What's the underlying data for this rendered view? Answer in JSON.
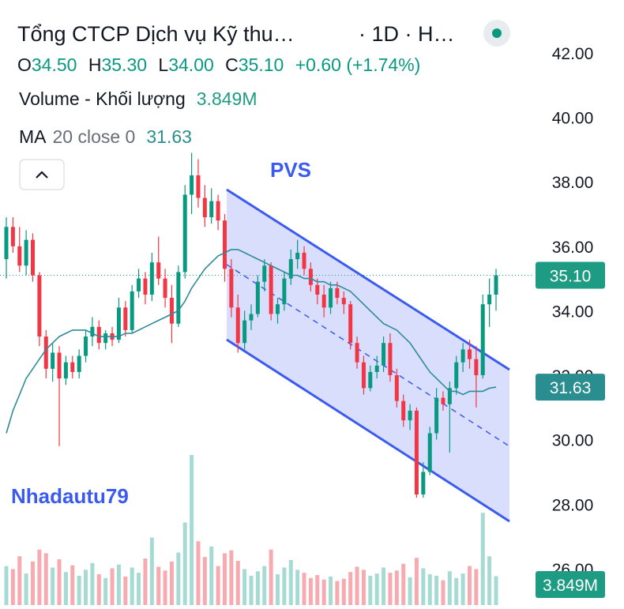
{
  "chart_data": {
    "type": "candlestick",
    "title": "Tổng CTCP Dịch vụ Kỹ thu…",
    "interval": "· 1D · H…",
    "ohlc_legend": [
      {
        "label": "O",
        "value": "34.50"
      },
      {
        "label": "H",
        "value": "35.30"
      },
      {
        "label": "L",
        "value": "34.00"
      },
      {
        "label": "C",
        "value": "35.10"
      }
    ],
    "change": "+0.60 (+1.74%)",
    "volume_legend": {
      "name": "Volume - Khối lượng",
      "value": "3.849M"
    },
    "ma_legend": {
      "name": "MA",
      "params": "20 close 0",
      "value": "31.63"
    },
    "annotations": [
      "PVS",
      "Nhadautu79"
    ],
    "up_color": "#089981",
    "down_color": "#f23645",
    "volume_up_color": "#a6dbd3",
    "volume_down_color": "#f7abb1",
    "ylim": [
      24.87,
      43.64
    ],
    "yticks": [
      {
        "value": 26,
        "label": "26.00"
      },
      {
        "value": 28,
        "label": "28.00"
      },
      {
        "value": 30,
        "label": "30.00"
      },
      {
        "value": 32,
        "label": "32.00"
      },
      {
        "value": 34,
        "label": "34.00"
      },
      {
        "value": 36,
        "label": "36.00"
      },
      {
        "value": 38,
        "label": "38.00"
      },
      {
        "value": 40,
        "label": "40.00"
      },
      {
        "value": 42,
        "label": "42.00"
      }
    ],
    "grid": false,
    "open": [
      35.6,
      36.6,
      36.0,
      35.4,
      36.2,
      35.1,
      33.2,
      32.2,
      32.7,
      31.9,
      32.4,
      32.1,
      32.6,
      33.2,
      33.5,
      33.0,
      33.3,
      33.1,
      34.1,
      33.4,
      34.6,
      35.0,
      34.5,
      35.5,
      35.0,
      34.4,
      33.6,
      35.2,
      37.6,
      38.2,
      37.5,
      36.9,
      37.4,
      36.8,
      35.3,
      34.1,
      33.0,
      33.7,
      33.9,
      34.9,
      35.4,
      33.9,
      34.2,
      35.0,
      35.6,
      35.8,
      35.3,
      34.8,
      34.5,
      34.1,
      34.7,
      34.4,
      34.2,
      33.0,
      32.4,
      31.6,
      32.1,
      32.3,
      33.0,
      32.0,
      31.2,
      30.6,
      30.9,
      28.3,
      29.0,
      30.2,
      31.3,
      31.1,
      31.6,
      32.4,
      32.8,
      32.5,
      32.0,
      34.2,
      34.5
    ],
    "high": [
      36.9,
      36.9,
      36.6,
      36.5,
      36.4,
      35.2,
      33.4,
      33.0,
      32.9,
      32.6,
      32.6,
      32.8,
      33.4,
      33.8,
      33.7,
      33.4,
      33.5,
      34.4,
      34.3,
      34.8,
      35.3,
      35.2,
      35.8,
      36.3,
      35.3,
      34.8,
      35.4,
      37.9,
      38.9,
      38.7,
      37.9,
      37.8,
      37.6,
      37.0,
      35.6,
      34.5,
      34.0,
      34.2,
      35.1,
      35.6,
      35.5,
      34.4,
      35.2,
      35.9,
      36.2,
      36.0,
      35.5,
      35.0,
      34.8,
      34.9,
      34.9,
      34.6,
      34.3,
      33.2,
      32.6,
      32.3,
      32.6,
      33.2,
      33.3,
      32.2,
      31.4,
      31.1,
      31.0,
      29.3,
      30.4,
      31.6,
      31.5,
      31.8,
      32.6,
      33.0,
      33.1,
      32.9,
      34.5,
      35.0,
      35.3
    ],
    "low": [
      35.0,
      35.8,
      35.2,
      35.1,
      34.9,
      32.9,
      31.9,
      31.8,
      29.8,
      31.7,
      31.9,
      31.9,
      32.4,
      32.9,
      32.8,
      32.8,
      32.9,
      33.0,
      33.2,
      33.3,
      34.4,
      34.2,
      34.3,
      34.8,
      34.1,
      33.0,
      33.5,
      35.0,
      37.0,
      37.2,
      36.6,
      36.7,
      36.5,
      34.9,
      33.8,
      32.7,
      32.8,
      33.4,
      33.8,
      34.6,
      33.7,
      33.6,
      34.0,
      34.8,
      35.3,
      35.1,
      34.6,
      34.2,
      33.8,
      33.9,
      34.2,
      33.9,
      32.8,
      32.2,
      31.4,
      31.5,
      31.9,
      32.1,
      31.8,
      31.0,
      30.4,
      30.3,
      28.2,
      28.2,
      28.9,
      30.0,
      30.9,
      29.6,
      31.4,
      32.1,
      32.2,
      31.0,
      31.9,
      33.5,
      34.0
    ],
    "close": [
      36.6,
      36.0,
      35.4,
      36.2,
      35.1,
      33.2,
      32.2,
      32.7,
      31.9,
      32.4,
      32.1,
      32.6,
      33.2,
      33.5,
      33.0,
      33.3,
      33.1,
      34.1,
      33.4,
      34.6,
      35.0,
      34.5,
      35.5,
      35.0,
      34.4,
      33.6,
      35.2,
      37.6,
      38.2,
      37.5,
      36.9,
      37.4,
      36.8,
      35.3,
      34.1,
      33.0,
      33.7,
      33.9,
      34.9,
      35.4,
      33.9,
      34.2,
      35.0,
      35.6,
      35.8,
      35.3,
      34.8,
      34.5,
      34.1,
      34.7,
      34.4,
      34.2,
      33.0,
      32.4,
      31.6,
      32.1,
      32.3,
      33.0,
      32.0,
      31.2,
      30.6,
      30.9,
      28.3,
      29.0,
      30.2,
      31.3,
      31.1,
      31.6,
      32.4,
      32.8,
      32.5,
      32.0,
      34.2,
      34.5,
      35.1
    ],
    "volume": [
      5200000,
      4800000,
      6500000,
      4200000,
      5800000,
      7400000,
      6900000,
      5000000,
      6100000,
      4400000,
      5300000,
      3900000,
      4700000,
      5600000,
      4100000,
      3600000,
      4900000,
      5400000,
      3800000,
      5000000,
      4300000,
      6200000,
      9000000,
      5100000,
      4600000,
      5800000,
      7000000,
      11000000,
      20000000,
      8500000,
      6400000,
      7800000,
      5200000,
      6900000,
      7300000,
      5900000,
      4800000,
      3900000,
      4500000,
      5200000,
      7400000,
      4100000,
      5000000,
      6000000,
      4700000,
      4300000,
      3600000,
      4000000,
      3400000,
      3800000,
      3200000,
      3500000,
      4400000,
      5100000,
      4700000,
      3900000,
      4200000,
      5000000,
      4300000,
      4600000,
      5500000,
      3700000,
      6300000,
      4900000,
      4100000,
      3900000,
      3300000,
      4500000,
      3600000,
      4200000,
      5200000,
      4800000,
      12300000,
      6500000,
      3849000
    ],
    "ma": {
      "color": "#2e8b9a",
      "values": [
        30.2,
        30.9,
        31.4,
        31.9,
        32.2,
        32.5,
        32.8,
        33.0,
        33.2,
        33.3,
        33.4,
        33.4,
        33.4,
        33.3,
        33.2,
        33.2,
        33.2,
        33.2,
        33.3,
        33.3,
        33.4,
        33.5,
        33.6,
        33.7,
        33.8,
        33.9,
        34.0,
        34.3,
        34.7,
        35.0,
        35.3,
        35.5,
        35.7,
        35.8,
        35.9,
        35.9,
        35.8,
        35.7,
        35.6,
        35.5,
        35.4,
        35.3,
        35.2,
        35.1,
        35.1,
        35.0,
        35.0,
        34.9,
        34.9,
        34.8,
        34.8,
        34.7,
        34.6,
        34.4,
        34.2,
        34.0,
        33.8,
        33.6,
        33.5,
        33.4,
        33.2,
        33.0,
        32.7,
        32.4,
        32.1,
        31.9,
        31.7,
        31.5,
        31.5,
        31.4,
        31.5,
        31.5,
        31.5,
        31.6,
        31.63
      ]
    },
    "last_price": {
      "value": 35.1,
      "label": "35.10",
      "color": "#1e9b83"
    },
    "ma_last": {
      "value": 31.63,
      "label": "31.63",
      "color": "#2a8d8f"
    },
    "volume_last": {
      "value": 3849000,
      "label": "3.849M",
      "color": "#1e9b83"
    }
  }
}
